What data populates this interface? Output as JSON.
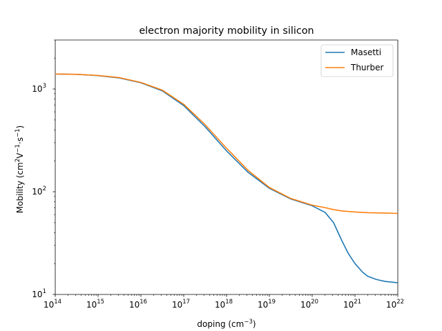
{
  "chart_data": {
    "type": "line",
    "title": "electron majority mobility in silicon",
    "xlabel": {
      "base": "doping (cm",
      "sup": "−3",
      "tail": ")"
    },
    "ylabel": {
      "parts": [
        {
          "t": "Mobility (cm",
          "sup": false
        },
        {
          "t": "2",
          "sup": true
        },
        {
          "t": "V",
          "sup": false
        },
        {
          "t": "−1",
          "sup": true
        },
        {
          "t": "·s",
          "sup": false
        },
        {
          "t": "−1",
          "sup": true
        },
        {
          "t": ")",
          "sup": false
        }
      ]
    },
    "x_scale": "log",
    "y_scale": "log",
    "xlim": [
      100000000000000.0,
      1e+22
    ],
    "ylim": [
      10,
      3000
    ],
    "x_ticks": [
      {
        "value": 100000000000000.0,
        "base": "10",
        "exp": "14"
      },
      {
        "value": 1000000000000000.0,
        "base": "10",
        "exp": "15"
      },
      {
        "value": 1e+16,
        "base": "10",
        "exp": "16"
      },
      {
        "value": 1e+17,
        "base": "10",
        "exp": "17"
      },
      {
        "value": 1e+18,
        "base": "10",
        "exp": "18"
      },
      {
        "value": 1e+19,
        "base": "10",
        "exp": "19"
      },
      {
        "value": 1e+20,
        "base": "10",
        "exp": "20"
      },
      {
        "value": 1e+21,
        "base": "10",
        "exp": "21"
      },
      {
        "value": 1e+22,
        "base": "10",
        "exp": "22"
      }
    ],
    "y_ticks": [
      {
        "value": 10,
        "base": "10",
        "exp": "1"
      },
      {
        "value": 100,
        "base": "10",
        "exp": "2"
      },
      {
        "value": 1000,
        "base": "10",
        "exp": "3"
      }
    ],
    "grid": false,
    "legend_position": "upper right",
    "series": [
      {
        "name": "Masetti",
        "color": "#1f77b4",
        "x": [
          100000000000000.0,
          316000000000000.0,
          1000000000000000.0,
          3160000000000000.0,
          1e+16,
          3.16e+16,
          1e+17,
          3.16e+17,
          1e+18,
          3.16e+18,
          1e+19,
          3.16e+19,
          1e+20,
          2e+20,
          3.16e+20,
          5e+20,
          7e+20,
          1e+21,
          1.5e+21,
          2e+21,
          3.16e+21,
          5e+21,
          1e+22
        ],
        "y": [
          1400,
          1390,
          1350,
          1280,
          1150,
          960,
          690,
          430,
          250,
          155,
          108,
          85,
          73,
          63,
          50,
          33,
          25,
          20,
          16.5,
          15,
          14,
          13.4,
          13
        ]
      },
      {
        "name": "Thurber",
        "color": "#ff7f0e",
        "x": [
          100000000000000.0,
          316000000000000.0,
          1000000000000000.0,
          3160000000000000.0,
          1e+16,
          3.16e+16,
          1e+17,
          3.16e+17,
          1e+18,
          3.16e+18,
          1e+19,
          3.16e+19,
          1e+20,
          2e+20,
          3.16e+20,
          5e+20,
          1e+21,
          2e+21,
          5e+21,
          1e+22
        ],
        "y": [
          1400,
          1390,
          1355,
          1290,
          1160,
          975,
          710,
          450,
          265,
          162,
          110,
          86,
          74,
          70,
          67,
          65,
          63.5,
          62.5,
          62,
          61.5
        ]
      }
    ]
  }
}
